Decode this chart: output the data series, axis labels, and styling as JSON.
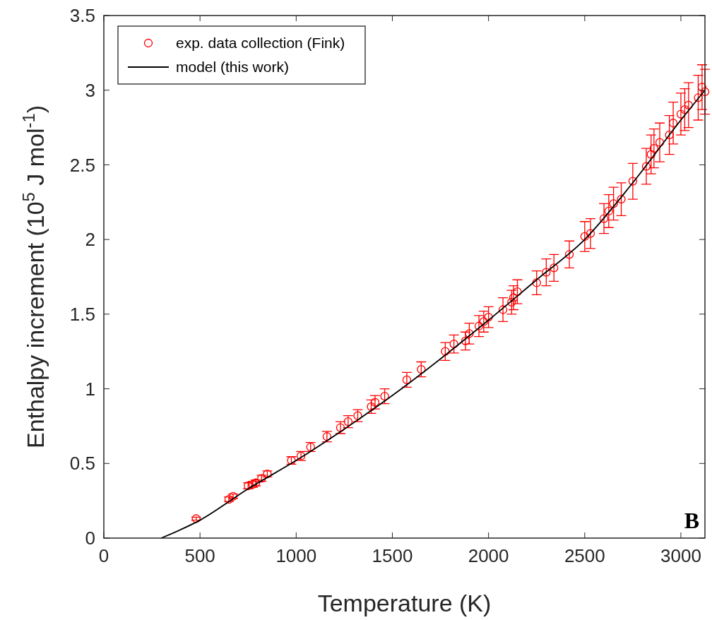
{
  "chart_data": {
    "type": "scatter",
    "xlabel": "Temperature (K)",
    "ylabel": "Enthalpy increment (10$^{5}$ J mol$^{-1}$)",
    "xlim": [
      0,
      3125
    ],
    "xticks": [
      0,
      500,
      1000,
      1500,
      2000,
      2500,
      3000
    ],
    "ylim": [
      0,
      3.5
    ],
    "yticks": [
      0,
      0.5,
      1,
      1.5,
      2,
      2.5,
      3,
      3.5
    ],
    "legend": "top left",
    "marker": "circle",
    "grid": false,
    "annotations": [
      "B"
    ],
    "series": [
      {
        "name": "exp. data collection (Fink)",
        "color": "#ff0000",
        "x": [
          480,
          650,
          672,
          750,
          775,
          790,
          820,
          850,
          975,
          1025,
          1075,
          1160,
          1230,
          1270,
          1320,
          1390,
          1410,
          1460,
          1575,
          1650,
          1775,
          1820,
          1880,
          1900,
          1950,
          1975,
          2000,
          2075,
          2120,
          2130,
          2150,
          2250,
          2300,
          2340,
          2420,
          2500,
          2530,
          2600,
          2625,
          2650,
          2690,
          2750,
          2820,
          2845,
          2860,
          2890,
          2940,
          2960,
          3000,
          3020,
          3040,
          3090,
          3110,
          3125
        ],
        "values": [
          0.13,
          0.26,
          0.28,
          0.35,
          0.36,
          0.37,
          0.4,
          0.43,
          0.52,
          0.55,
          0.61,
          0.68,
          0.74,
          0.78,
          0.82,
          0.88,
          0.91,
          0.95,
          1.06,
          1.13,
          1.25,
          1.3,
          1.32,
          1.37,
          1.42,
          1.45,
          1.48,
          1.53,
          1.58,
          1.61,
          1.65,
          1.71,
          1.78,
          1.81,
          1.9,
          2.02,
          2.04,
          2.14,
          2.19,
          2.24,
          2.27,
          2.39,
          2.49,
          2.57,
          2.61,
          2.65,
          2.7,
          2.78,
          2.84,
          2.87,
          2.9,
          2.95,
          3.02,
          2.99
        ],
        "errors": [
          0.01,
          0.015,
          0.015,
          0.02,
          0.02,
          0.02,
          0.02,
          0.02,
          0.025,
          0.03,
          0.03,
          0.035,
          0.04,
          0.04,
          0.04,
          0.045,
          0.045,
          0.05,
          0.05,
          0.05,
          0.06,
          0.06,
          0.06,
          0.07,
          0.07,
          0.07,
          0.07,
          0.08,
          0.08,
          0.08,
          0.08,
          0.08,
          0.09,
          0.09,
          0.09,
          0.1,
          0.1,
          0.1,
          0.11,
          0.11,
          0.11,
          0.12,
          0.12,
          0.13,
          0.13,
          0.13,
          0.13,
          0.14,
          0.14,
          0.14,
          0.15,
          0.15,
          0.15,
          0.15
        ]
      },
      {
        "name": "model (this work)",
        "type": "line",
        "color": "#000000",
        "line_style": "solid",
        "marker": "none",
        "x": [
          298,
          500,
          750,
          1000,
          1250,
          1500,
          1750,
          2000,
          2250,
          2500,
          2750,
          3000,
          3125
        ],
        "values": [
          0,
          0.12,
          0.33,
          0.52,
          0.73,
          0.955,
          1.2,
          1.46,
          1.73,
          2.0,
          2.38,
          2.8,
          3.0
        ]
      }
    ]
  }
}
